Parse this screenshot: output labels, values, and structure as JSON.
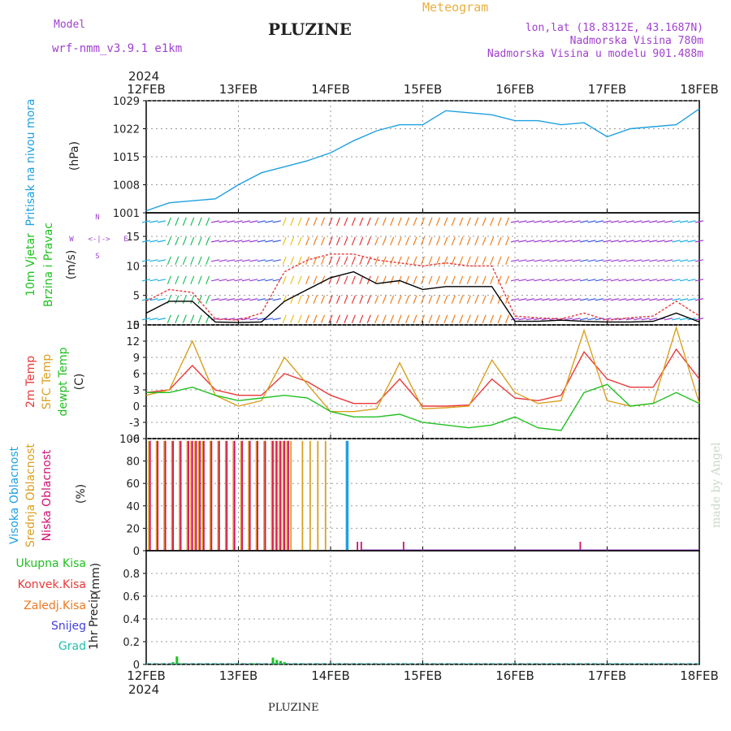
{
  "header": {
    "model_label": "Model",
    "model_name": "wrf-nmm_v3.9.1 e1km",
    "station": "PLUZINE",
    "meteogram_label": "Meteogram",
    "coords": "lon,lat (18.8312E, 43.1687N)",
    "elevation": "Nadmorska Visina 780m",
    "model_elevation": "Nadmorska Visina u modelu 901.488m",
    "year_top": "2024",
    "year_bottom": "2024",
    "footer": "PLUZINE",
    "credit": "made by Angel"
  },
  "colors": {
    "pressure": "#1fa0e0",
    "temp2m": "#e83838",
    "sfc": "#d8a020",
    "dewpt": "#20c020",
    "wind_line": "#000000",
    "gust": "#e83838",
    "purple": "#a040d0",
    "high_cloud": "#20a0e0",
    "mid_cloud": "#d8a020",
    "low_cloud": "#d01070",
    "precip_total": "#20c020",
    "precip_conv": "#e83838",
    "precip_frz": "#f07820",
    "snow": "#4040e0",
    "hail": "#20c0b0",
    "credit": "#c8d8c8"
  },
  "time_axis": {
    "labels": [
      "12FEB",
      "13FEB",
      "14FEB",
      "15FEB",
      "16FEB",
      "17FEB",
      "18FEB"
    ],
    "start": "2024-02-12T00",
    "end": "2024-02-18T00"
  },
  "wind_compass": {
    "n": "N",
    "s": "S",
    "e": "E",
    "w": "W"
  },
  "chart_data": [
    {
      "type": "line",
      "name": "pressure",
      "ylabel": "Pritisak na nivou mora",
      "unit": "(hPa)",
      "ylim": [
        1001,
        1029
      ],
      "yticks": [
        1001,
        1008,
        1015,
        1022,
        1029
      ],
      "x_hours": [
        0,
        6,
        12,
        18,
        24,
        30,
        36,
        42,
        48,
        54,
        60,
        66,
        72,
        78,
        84,
        90,
        96,
        102,
        108,
        114,
        120,
        126,
        132,
        138,
        144
      ],
      "series": [
        {
          "values": [
            1001.5,
            1003.5,
            1004,
            1004.5,
            1008,
            1011,
            1012.5,
            1014,
            1016,
            1019,
            1021.5,
            1023,
            1023,
            1026.5,
            1026,
            1025.5,
            1024,
            1024,
            1023,
            1023.5,
            1020,
            1022,
            1022.5,
            1023,
            1027
          ]
        }
      ]
    },
    {
      "type": "line",
      "name": "wind",
      "ylabel": "10m Vjetar",
      "ylabel2": "Brzina i Pravac",
      "unit": "(m/s)",
      "ylim": [
        0,
        19
      ],
      "yticks": [
        0,
        5,
        10,
        15
      ],
      "x_hours": [
        0,
        6,
        12,
        18,
        24,
        30,
        36,
        42,
        48,
        54,
        60,
        66,
        72,
        78,
        84,
        90,
        96,
        102,
        108,
        114,
        120,
        126,
        132,
        138,
        144
      ],
      "series": [
        {
          "values": [
            2,
            4,
            4,
            0.5,
            0.4,
            0.5,
            4,
            6,
            8,
            9,
            7,
            7.5,
            6,
            6.5,
            6.5,
            6.5,
            0.6,
            0.6,
            0.8,
            0.6,
            0.5,
            0.5,
            0.6,
            2,
            0.5
          ]
        },
        {
          "values": [
            4,
            6,
            5.5,
            1,
            0.8,
            2,
            9,
            11,
            12,
            12,
            11,
            10.5,
            10,
            10.5,
            10,
            10,
            1.5,
            1.2,
            1,
            2,
            0.8,
            1.2,
            1.5,
            4,
            1.5
          ]
        }
      ]
    },
    {
      "type": "line",
      "name": "temperature",
      "ylabel": "2m Temp",
      "ylabel2": "SFC Temp",
      "ylabel3": "dewpt Temp",
      "unit": "(C)",
      "ylim": [
        -6,
        15
      ],
      "yticks": [
        -6,
        -3,
        0,
        3,
        6,
        9,
        12,
        15
      ],
      "x_hours": [
        0,
        6,
        12,
        18,
        24,
        30,
        36,
        42,
        48,
        54,
        60,
        66,
        72,
        78,
        84,
        90,
        96,
        102,
        108,
        114,
        120,
        126,
        132,
        138,
        144
      ],
      "series": [
        {
          "values": [
            2.5,
            3,
            7.5,
            3,
            2,
            2,
            6,
            4.5,
            2,
            0.5,
            0.5,
            5,
            0,
            0,
            0.2,
            5,
            1.5,
            1,
            2,
            10,
            5,
            3.5,
            3.5,
            10.5,
            5
          ]
        },
        {
          "values": [
            2,
            3,
            12,
            2,
            0,
            1,
            9,
            4,
            -1,
            -1,
            -0.5,
            8,
            -0.5,
            -0.3,
            0,
            8.5,
            2.5,
            0.5,
            1,
            14,
            1,
            0,
            0.5,
            14.5,
            0.5
          ]
        },
        {
          "values": [
            2.5,
            2.5,
            3.5,
            2,
            1,
            1.5,
            2,
            1.5,
            -1,
            -2,
            -2,
            -1.5,
            -3,
            -3.5,
            -4,
            -3.5,
            -2,
            -4,
            -4.5,
            2.5,
            4,
            0,
            0.5,
            2.5,
            0.5
          ]
        }
      ]
    },
    {
      "type": "bar",
      "name": "clouds",
      "ylabel": "Visoka Oblacnost",
      "ylabel2": "Srednja Oblacnost",
      "ylabel3": "Niska Oblacnost",
      "unit": "(%)",
      "ylim": [
        0,
        100
      ],
      "yticks": [
        0,
        20,
        40,
        60,
        80,
        100
      ],
      "x_hours": [
        1,
        3,
        5,
        7,
        9,
        11,
        12,
        13,
        14,
        15,
        17,
        19,
        21,
        23,
        25,
        27,
        29,
        31,
        33,
        34,
        35,
        36,
        37,
        38,
        41,
        43,
        45,
        47,
        52,
        55,
        56,
        67,
        113
      ],
      "series": [
        {
          "values": [
            0,
            0,
            0,
            0,
            0,
            0,
            0,
            0,
            0,
            0,
            0,
            0,
            0,
            0,
            0,
            0,
            0,
            0,
            0,
            0,
            0,
            0,
            0,
            0,
            0,
            0,
            0,
            0,
            98,
            0,
            0,
            0,
            0
          ]
        },
        {
          "values": [
            98,
            98,
            98,
            98,
            98,
            98,
            98,
            98,
            98,
            98,
            98,
            98,
            98,
            98,
            98,
            98,
            98,
            98,
            98,
            98,
            98,
            98,
            98,
            98,
            98,
            98,
            98,
            98,
            0,
            0,
            0,
            0,
            0
          ]
        },
        {
          "values": [
            98,
            98,
            98,
            98,
            98,
            98,
            98,
            98,
            98,
            98,
            98,
            98,
            98,
            98,
            98,
            98,
            98,
            98,
            98,
            98,
            98,
            98,
            98,
            0,
            0,
            0,
            0,
            0,
            0,
            8,
            8,
            8,
            8
          ]
        }
      ]
    },
    {
      "type": "bar",
      "name": "precip",
      "ylabel": "1hr Precip",
      "unit": "(mm)",
      "ylim": [
        0,
        1
      ],
      "yticks": [
        0,
        0.2,
        0.4,
        0.6,
        0.8
      ],
      "legend": [
        "Ukupna Kisa",
        "Konvek.Kisa",
        "Zaledj.Kisa",
        "Snijeg",
        "Grad"
      ],
      "x_hours": [
        7,
        8,
        9,
        28,
        33,
        34,
        35,
        36
      ],
      "series": [
        {
          "values": [
            0.02,
            0.07,
            0.01,
            0.01,
            0.06,
            0.04,
            0.03,
            0.02
          ]
        }
      ]
    }
  ]
}
